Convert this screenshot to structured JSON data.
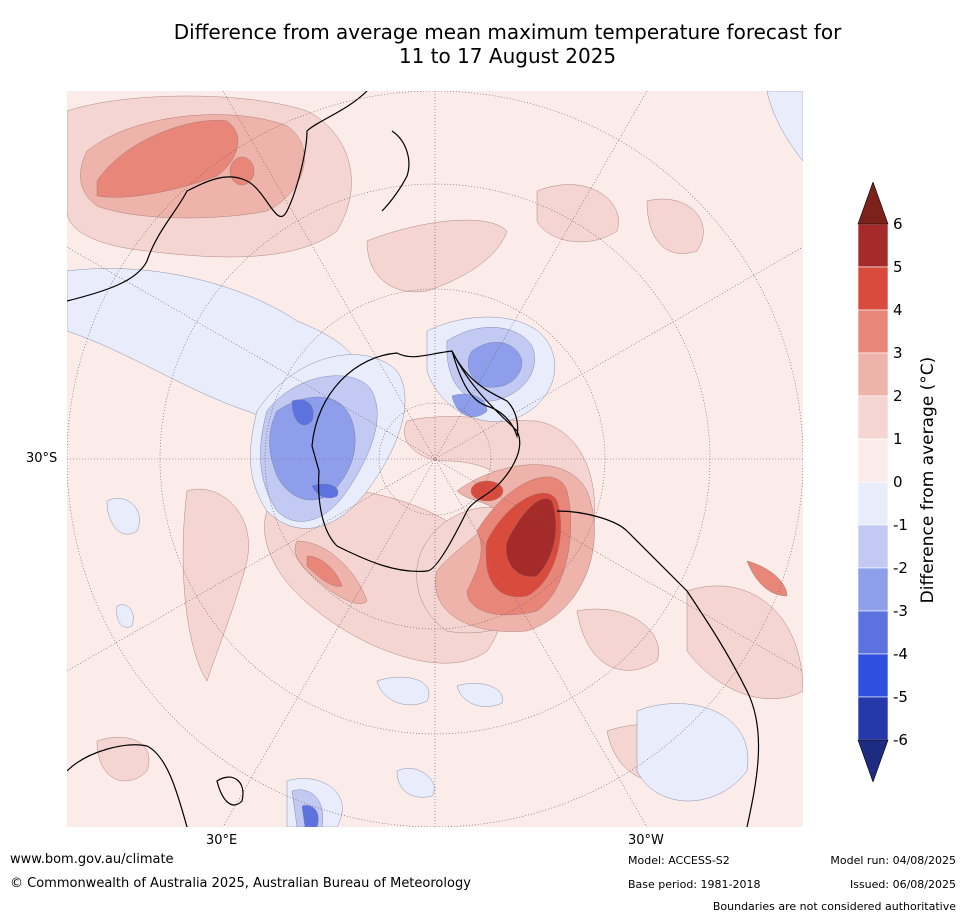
{
  "title_line1": "Difference from average mean maximum temperature forecast for",
  "title_line2": "11 to 17 August 2025",
  "axis_labels": {
    "lat": "30°S",
    "lon_east": "30°E",
    "lon_west": "30°W"
  },
  "colorbar": {
    "label": "Difference from average (°C)",
    "ticks": [
      "6",
      "5",
      "4",
      "3",
      "2",
      "1",
      "0",
      "-1",
      "-2",
      "-3",
      "-4",
      "-5",
      "-6"
    ],
    "colors_top_to_bottom": [
      "#a52a2a",
      "#d94c3d",
      "#e8867a",
      "#eeb3aa",
      "#f5d5d1",
      "#fbecea",
      "#e9ecfb",
      "#c2c9f3",
      "#8f9eea",
      "#5c72df",
      "#2f4fe0",
      "#2539aa"
    ],
    "extend_over_color": "#7d211c",
    "extend_under_color": "#1d2b80"
  },
  "footer": {
    "website": "www.bom.gov.au/climate",
    "copyright": "© Commonwealth of Australia 2025, Australian Bureau of Meteorology",
    "model": "Model: ACCESS-S2",
    "base_period": "Base period: 1981-2018",
    "model_run": "Model run: 04/08/2025",
    "issued": "Issued: 06/08/2025",
    "disclaimer": "Boundaries are not considered authoritative"
  }
}
